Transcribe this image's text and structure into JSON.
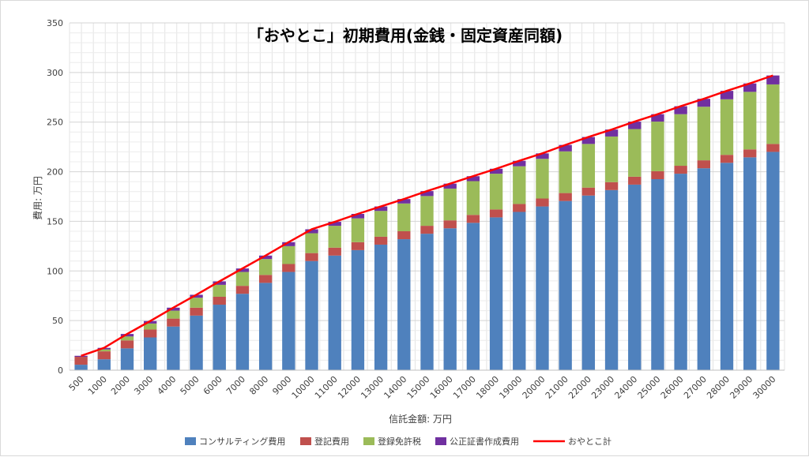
{
  "chart_data": {
    "type": "bar",
    "stacked": true,
    "title": "「おやとこ」初期費用(金銭・固定資産同額)",
    "xlabel": "信託金額: 万円",
    "ylabel": "費用: 万円",
    "ylim": [
      0,
      350
    ],
    "yticks": [
      "0",
      "50",
      "100",
      "150",
      "200",
      "250",
      "300",
      "350"
    ],
    "grid": true,
    "legend_position": "bottom",
    "categories": [
      "500",
      "1000",
      "2000",
      "3000",
      "4000",
      "5000",
      "6000",
      "7000",
      "8000",
      "9000",
      "10000",
      "11000",
      "12000",
      "13000",
      "14000",
      "15000",
      "16000",
      "17000",
      "18000",
      "19000",
      "20000",
      "21000",
      "22000",
      "23000",
      "24000",
      "25000",
      "26000",
      "27000",
      "28000",
      "29000",
      "30000"
    ],
    "series": [
      {
        "name": "コンサルティング費用",
        "type": "bar",
        "color": "#4f81bd",
        "values": [
          5.5,
          11,
          22,
          33,
          44,
          55,
          66,
          77,
          88,
          99,
          110,
          115.5,
          121,
          126.5,
          132,
          137.5,
          143,
          148.5,
          154,
          159.5,
          165,
          170.5,
          176,
          181.5,
          187,
          192.5,
          198,
          203.5,
          209,
          214.5,
          220
        ]
      },
      {
        "name": "登記費用",
        "type": "bar",
        "color": "#c0504d",
        "values": [
          8,
          8,
          8,
          8,
          8,
          8,
          8,
          8,
          8,
          8,
          8,
          8,
          8,
          8,
          8,
          8,
          8,
          8,
          8,
          8,
          8,
          8,
          8,
          8,
          8,
          8,
          8,
          8,
          8,
          8,
          8
        ]
      },
      {
        "name": "登録免許税",
        "type": "bar",
        "color": "#9bbb59",
        "values": [
          0,
          2,
          4,
          6,
          8,
          10,
          12,
          14,
          16,
          18,
          20,
          22,
          24,
          26,
          28,
          30,
          32,
          34,
          36,
          38,
          40,
          42,
          44,
          46,
          48,
          50,
          52,
          54,
          56,
          58,
          60
        ]
      },
      {
        "name": "公正証書作成費用",
        "type": "bar",
        "color": "#7030a0",
        "values": [
          1,
          1.5,
          2.5,
          2.5,
          3,
          3,
          3.5,
          3.5,
          3.5,
          4,
          4,
          4,
          4.5,
          4.5,
          4.5,
          5,
          5,
          5,
          5,
          5.5,
          5.5,
          6.5,
          7,
          7,
          7.5,
          7.5,
          8,
          8,
          8.5,
          8.5,
          9
        ]
      },
      {
        "name": "おやとこ計",
        "type": "line",
        "color": "#ff0000",
        "values": [
          14.5,
          22.5,
          36.5,
          49.5,
          63,
          76,
          89.5,
          102.5,
          115.5,
          129,
          142,
          149.5,
          157.5,
          165,
          172.5,
          180.5,
          188,
          195.5,
          203,
          211,
          218.5,
          227,
          235,
          242.5,
          250.5,
          258,
          266,
          273.5,
          281.5,
          289,
          297
        ]
      }
    ]
  }
}
